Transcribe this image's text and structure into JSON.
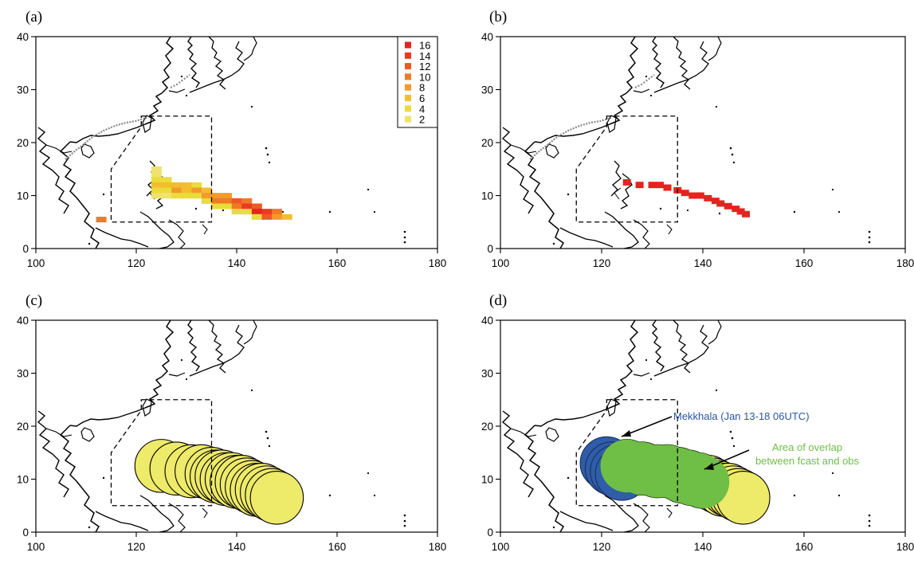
{
  "panels": [
    {
      "label": "(a)",
      "content": "ensemble frequency of forecast storm grid cells"
    },
    {
      "label": "(b)",
      "content": "observed storm grid cells"
    },
    {
      "label": "(c)",
      "content": "forecast storm-strike circles"
    },
    {
      "label": "(d)",
      "content": "observed vs forecast overlap"
    }
  ],
  "axes": {
    "x_ticks": [
      "100",
      "120",
      "140",
      "160",
      "180"
    ],
    "y_ticks": [
      "0",
      "10",
      "20",
      "30",
      "40"
    ],
    "xlim": [
      100,
      180
    ],
    "ylim": [
      0,
      40
    ]
  },
  "legend": {
    "entries": [
      {
        "label": "16",
        "color": "#e5231f"
      },
      {
        "label": "14",
        "color": "#e93a22"
      },
      {
        "label": "12",
        "color": "#ec5a24"
      },
      {
        "label": "10",
        "color": "#ef7a25"
      },
      {
        "label": "8",
        "color": "#f29a2a"
      },
      {
        "label": "6",
        "color": "#f3bd2e"
      },
      {
        "label": "4",
        "color": "#eadc3a"
      },
      {
        "label": "2",
        "color": "#f0e26c"
      }
    ]
  },
  "domain_box": {
    "polygon_lonlat": [
      [
        121,
        25
      ],
      [
        135,
        25
      ],
      [
        135,
        5
      ],
      [
        115,
        5
      ],
      [
        115,
        15
      ],
      [
        121,
        23
      ]
    ]
  },
  "annotations": {
    "storm_label": "Mekkhala (Jan 13-18 06UTC)",
    "storm_color": "#2a55a8",
    "overlap_line1": "Area of overlap",
    "overlap_line2": "between fcast and obs",
    "overlap_color": "#6fbe45"
  },
  "colors": {
    "forecast_circle": "#eeea6a",
    "observed_fill": "#2f5da8",
    "overlap_fill": "#6fbe45",
    "obs_cells": "#e5231f"
  },
  "chart_data": [
    {
      "type": "heatmap",
      "title": "",
      "xlim": [
        100,
        180
      ],
      "ylim": [
        0,
        40
      ],
      "cells_lon_lat_count": [
        [
          124,
          15,
          2
        ],
        [
          124,
          14,
          2
        ],
        [
          124,
          13,
          4
        ],
        [
          124,
          12,
          6
        ],
        [
          124,
          11,
          4
        ],
        [
          124,
          10,
          2
        ],
        [
          126,
          13,
          4
        ],
        [
          126,
          12,
          6
        ],
        [
          126,
          11,
          4
        ],
        [
          126,
          10,
          2
        ],
        [
          128,
          12,
          6
        ],
        [
          128,
          11,
          8
        ],
        [
          128,
          10,
          4
        ],
        [
          130,
          12,
          6
        ],
        [
          130,
          11,
          6
        ],
        [
          130,
          10,
          4
        ],
        [
          132,
          12,
          4
        ],
        [
          132,
          11,
          8
        ],
        [
          132,
          10,
          4
        ],
        [
          134,
          11,
          6
        ],
        [
          134,
          10,
          8
        ],
        [
          134,
          9,
          4
        ],
        [
          136,
          10,
          8
        ],
        [
          136,
          9,
          10
        ],
        [
          136,
          8,
          4
        ],
        [
          138,
          10,
          8
        ],
        [
          138,
          9,
          10
        ],
        [
          138,
          8,
          4
        ],
        [
          140,
          9,
          12
        ],
        [
          140,
          8,
          10
        ],
        [
          140,
          7,
          4
        ],
        [
          142,
          9,
          10
        ],
        [
          142,
          8,
          14
        ],
        [
          142,
          7,
          4
        ],
        [
          144,
          8,
          12
        ],
        [
          144,
          7,
          16
        ],
        [
          144,
          6,
          4
        ],
        [
          146,
          7,
          14
        ],
        [
          146,
          6,
          12
        ],
        [
          148,
          7,
          10
        ],
        [
          148,
          6,
          8
        ],
        [
          150,
          6,
          6
        ],
        [
          113,
          5.5,
          10
        ]
      ]
    },
    {
      "type": "scatter",
      "series": [
        {
          "points": [
            [
              125,
              12.5
            ],
            [
              127.5,
              12
            ],
            [
              130,
              12
            ],
            [
              131.5,
              12
            ],
            [
              133,
              11.5
            ],
            [
              135,
              11
            ],
            [
              136.5,
              10.5
            ],
            [
              138,
              10
            ],
            [
              139.5,
              10
            ],
            [
              141,
              9.5
            ],
            [
              142.5,
              9
            ],
            [
              143.5,
              8.5
            ],
            [
              145,
              8
            ],
            [
              146.5,
              7.5
            ],
            [
              147.5,
              7
            ],
            [
              148.5,
              6.5
            ]
          ]
        }
      ]
    },
    {
      "type": "scatter",
      "series": [
        {
          "points": [
            [
              125,
              12.5
            ],
            [
              128,
              12
            ],
            [
              131,
              11.5
            ],
            [
              133,
              11.5
            ],
            [
              135,
              11
            ],
            [
              136,
              10.5
            ],
            [
              137,
              10.5
            ],
            [
              138,
              10
            ],
            [
              139,
              10
            ],
            [
              140,
              9.5
            ],
            [
              141,
              9.5
            ],
            [
              142,
              9
            ],
            [
              143,
              8.5
            ],
            [
              144,
              8
            ],
            [
              145,
              8
            ],
            [
              146,
              7.5
            ],
            [
              147,
              7
            ],
            [
              148,
              6.5
            ]
          ]
        }
      ]
    },
    {
      "type": "scatter",
      "series": [
        {
          "points": [
            [
              121,
              13
            ],
            [
              122,
              12
            ],
            [
              123,
              11.5
            ],
            [
              124,
              11
            ]
          ]
        }
      ]
    }
  ]
}
